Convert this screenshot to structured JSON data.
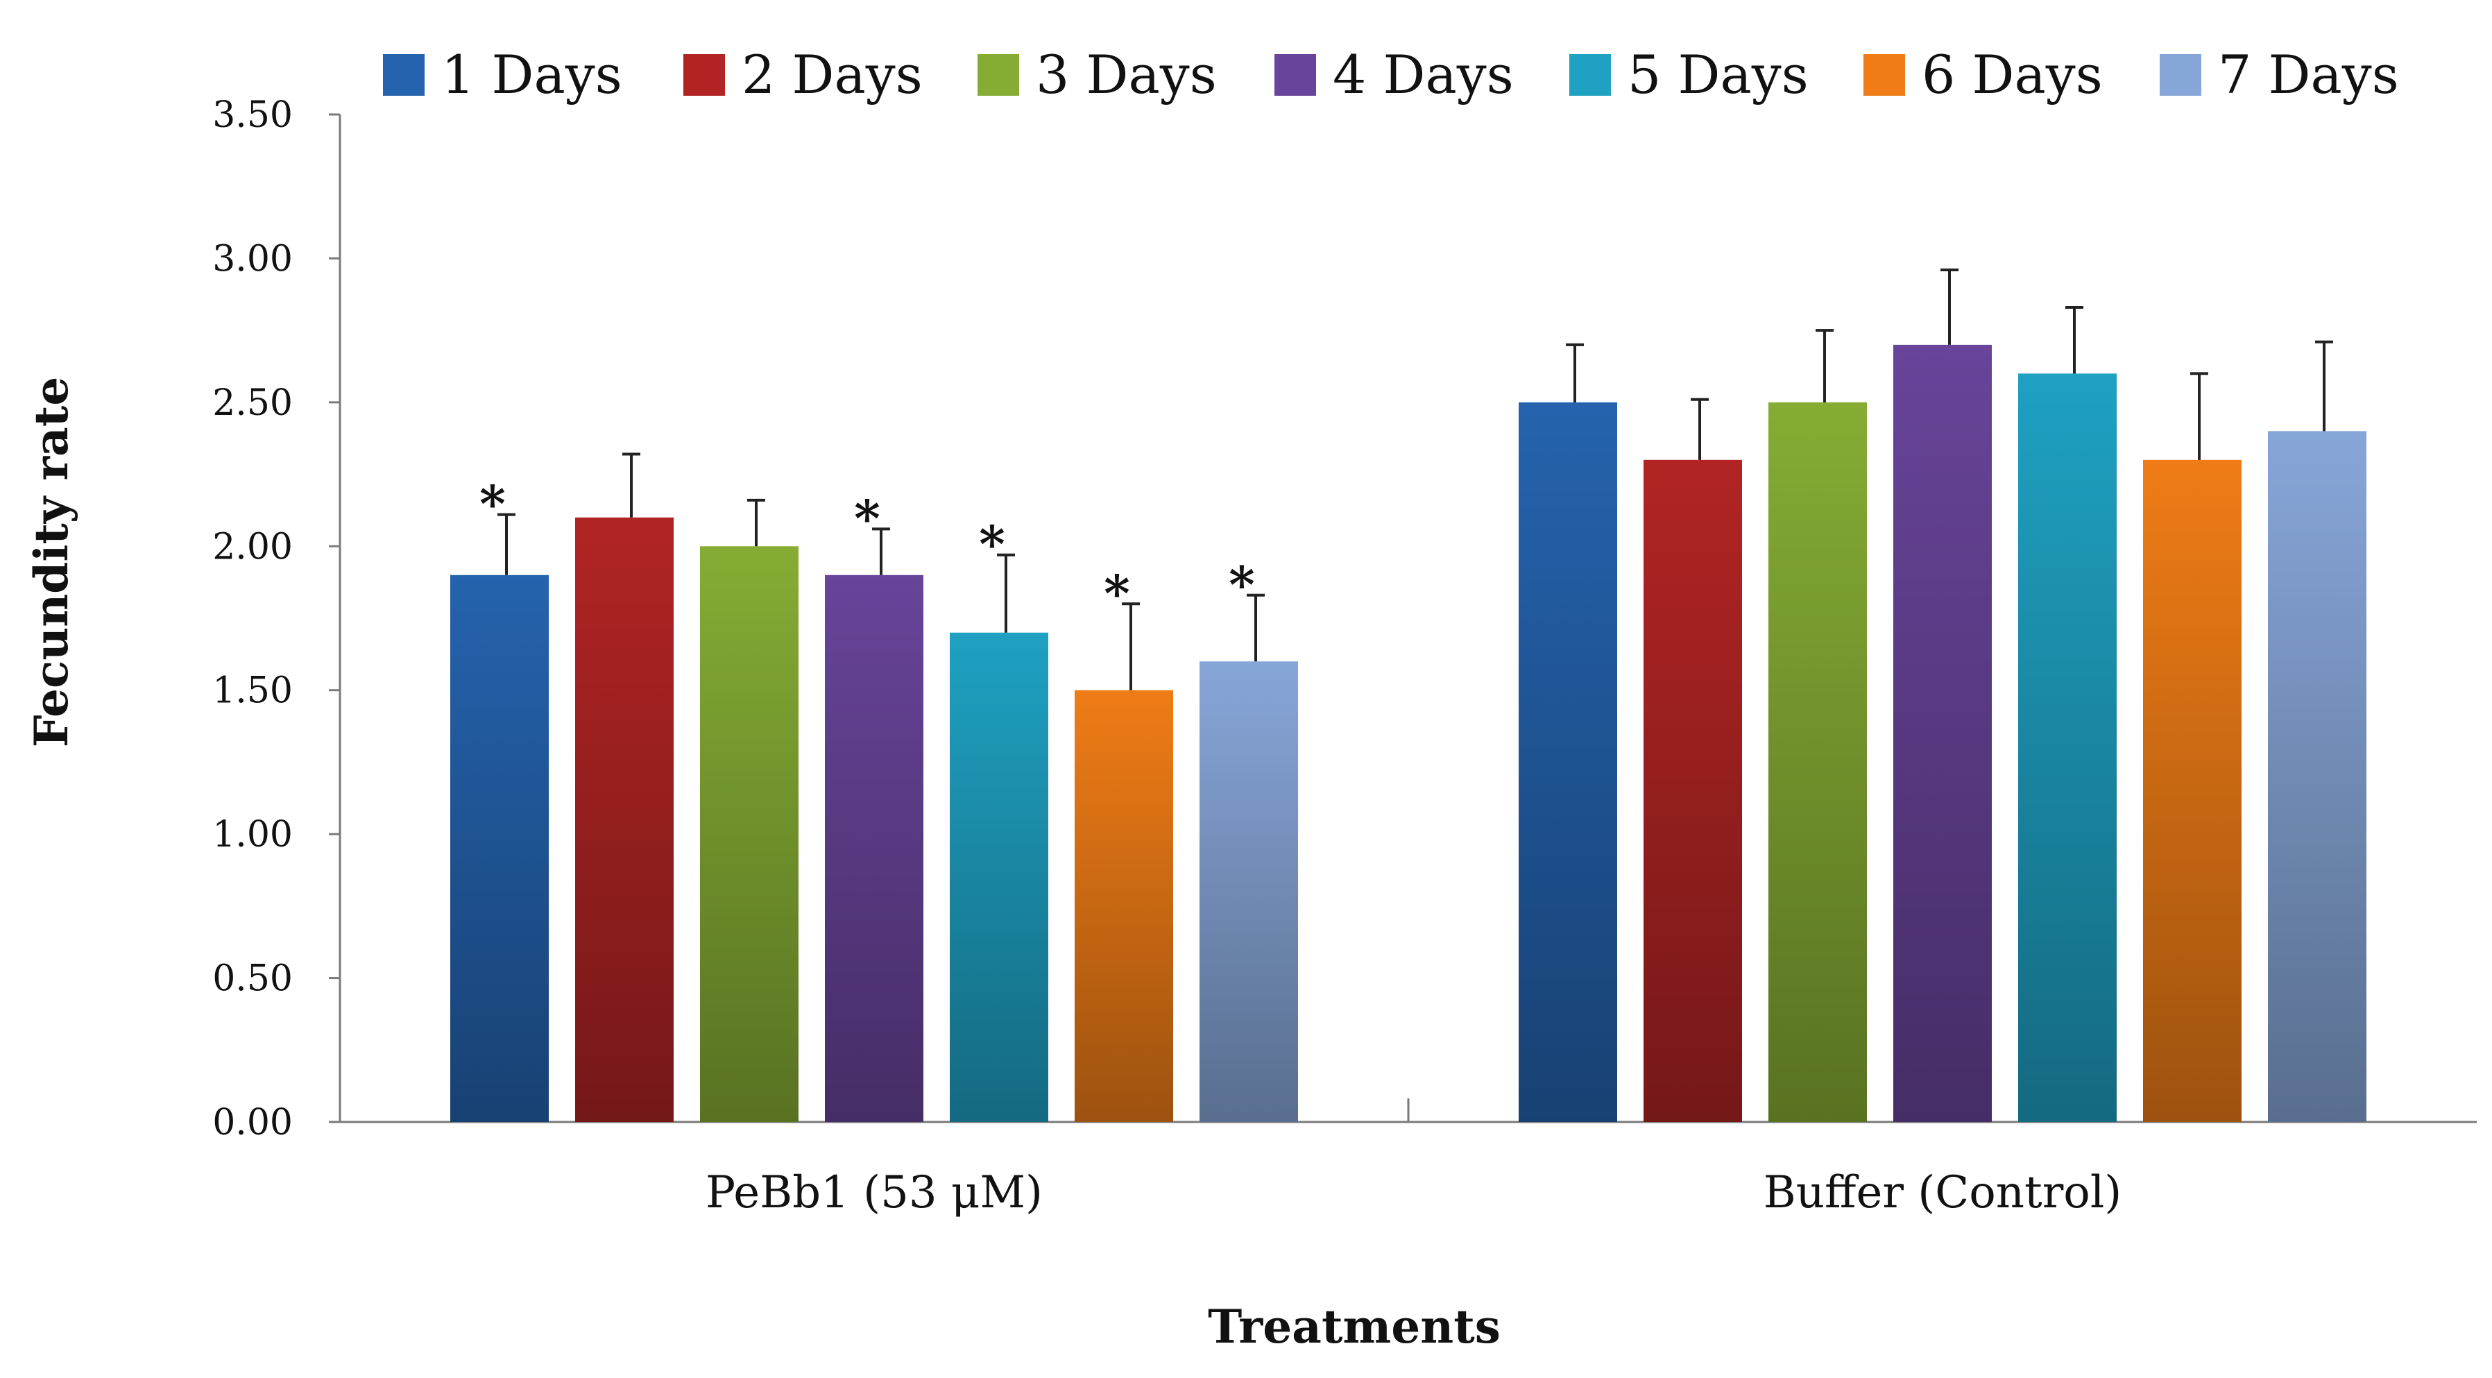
{
  "chart_data": {
    "type": "bar",
    "title": "",
    "xlabel": "Treatments",
    "ylabel": "Fecundity rate",
    "categories": [
      "PeBb1 (53 μM)",
      "Buffer (Control)"
    ],
    "ylim": [
      0,
      3.5
    ],
    "yticks": [
      "0.00",
      "0.50",
      "1.00",
      "1.50",
      "2.00",
      "2.50",
      "3.00",
      "3.50"
    ],
    "grid": false,
    "legend_position": "top",
    "series": [
      {
        "name": "1 Days",
        "values": [
          1.9,
          2.5
        ],
        "errors": [
          0.21,
          0.2
        ],
        "significance": [
          "*",
          ""
        ],
        "color": "#2563ae"
      },
      {
        "name": "2 Days",
        "values": [
          2.1,
          2.3
        ],
        "errors": [
          0.22,
          0.21
        ],
        "significance": [
          "",
          ""
        ],
        "color": "#b22424"
      },
      {
        "name": "3 Days",
        "values": [
          2.0,
          2.5
        ],
        "errors": [
          0.16,
          0.25
        ],
        "significance": [
          "",
          ""
        ],
        "color": "#86ac34"
      },
      {
        "name": "4 Days",
        "values": [
          1.9,
          2.7
        ],
        "errors": [
          0.16,
          0.26
        ],
        "significance": [
          "*",
          ""
        ],
        "color": "#68449a"
      },
      {
        "name": "5 Days",
        "values": [
          1.7,
          2.6
        ],
        "errors": [
          0.27,
          0.23
        ],
        "significance": [
          "*",
          ""
        ],
        "color": "#1fa1c2"
      },
      {
        "name": "6 Days",
        "values": [
          1.5,
          2.3
        ],
        "errors": [
          0.3,
          0.3
        ],
        "significance": [
          "*",
          ""
        ],
        "color": "#ef7c16"
      },
      {
        "name": "7 Days",
        "values": [
          1.6,
          2.4
        ],
        "errors": [
          0.23,
          0.31
        ],
        "significance": [
          "*",
          ""
        ],
        "color": "#87a6d8"
      }
    ]
  }
}
